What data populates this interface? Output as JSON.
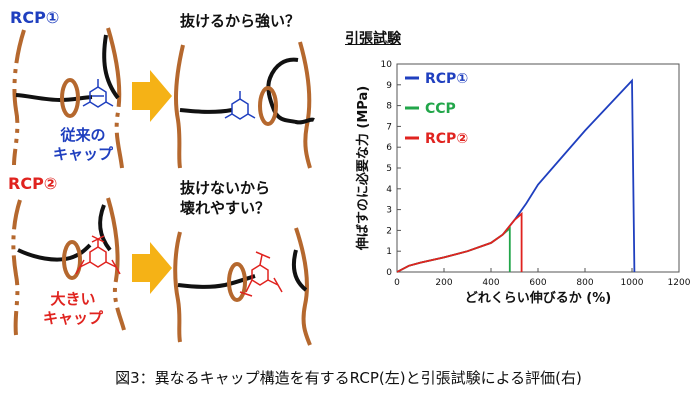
{
  "left": {
    "rcp1_label": "RCP①",
    "rcp2_label": "RCP②",
    "cap1_label_line1": "従来の",
    "cap1_label_line2": "キャップ",
    "cap2_label_line1": "大きい",
    "cap2_label_line2": "キャップ",
    "q1": "抜けるから強い？",
    "q2_line1": "抜けないから",
    "q2_line2": "壊れやすい？"
  },
  "chart_title": "引張試験",
  "caption": "図3：異なるキャップ構造を有するRCP(左)と引張試験による評価(右)",
  "colors": {
    "blue": "#1f3fbf",
    "green": "#22a64a",
    "red": "#e0231f",
    "brown": "#b5682e",
    "arrow": "#f5b216"
  },
  "chart_data": {
    "type": "line",
    "xlabel": "どれくらい伸びるか (%)",
    "ylabel": "伸ばすのに必要な力 (MPa)",
    "xlim": [
      0,
      1200
    ],
    "ylim": [
      0,
      10
    ],
    "xticks": [
      "0",
      "200",
      "400",
      "600",
      "800",
      "1000",
      "1200"
    ],
    "yticks": [
      "0",
      "1",
      "2",
      "3",
      "4",
      "5",
      "6",
      "7",
      "8",
      "9",
      "10"
    ],
    "series": [
      {
        "name": "RCP①",
        "color": "#1f3fbf",
        "x": [
          0,
          50,
          100,
          200,
          300,
          400,
          450,
          500,
          550,
          600,
          700,
          800,
          900,
          1000,
          1010
        ],
        "y": [
          0,
          0.3,
          0.45,
          0.7,
          1.0,
          1.4,
          1.8,
          2.5,
          3.3,
          4.2,
          5.5,
          6.8,
          8.0,
          9.2,
          0
        ]
      },
      {
        "name": "CCP",
        "color": "#22a64a",
        "x": [
          0,
          50,
          100,
          200,
          300,
          400,
          450,
          480,
          480
        ],
        "y": [
          0,
          0.3,
          0.45,
          0.7,
          1.0,
          1.4,
          1.8,
          2.1,
          0
        ]
      },
      {
        "name": "RCP②",
        "color": "#e0231f",
        "x": [
          0,
          50,
          100,
          200,
          300,
          400,
          450,
          500,
          530,
          530
        ],
        "y": [
          0,
          0.3,
          0.45,
          0.7,
          1.0,
          1.4,
          1.8,
          2.5,
          2.8,
          0
        ]
      }
    ]
  }
}
